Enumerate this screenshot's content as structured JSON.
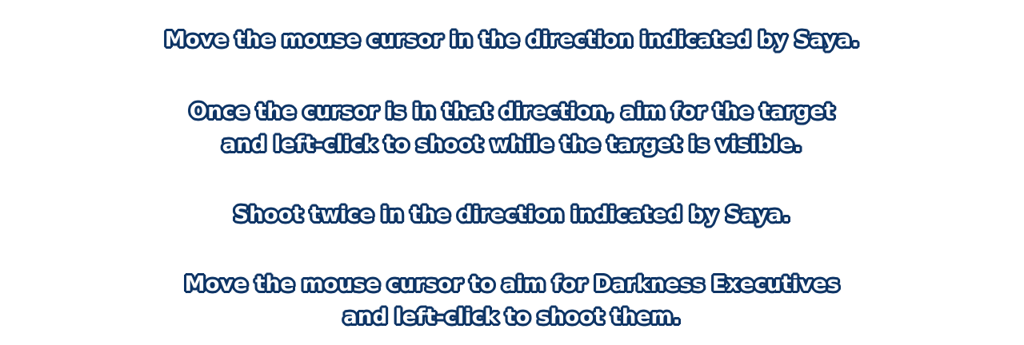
{
  "instructions": [
    {
      "lines": [
        "Move the mouse cursor in the direction indicated by Saya."
      ]
    },
    {
      "lines": [
        "Once the cursor is in that direction, aim for the target",
        "and left-click to shoot while the target is visible."
      ]
    },
    {
      "lines": [
        "Shoot twice in the direction indicated by Saya."
      ]
    },
    {
      "lines": [
        "Move the mouse cursor to aim for Darkness Executives",
        "and left-click to shoot them."
      ]
    }
  ],
  "colors": {
    "text_fill": "#ffffff",
    "text_outline": "#0e3566",
    "background": "#ffffff"
  }
}
